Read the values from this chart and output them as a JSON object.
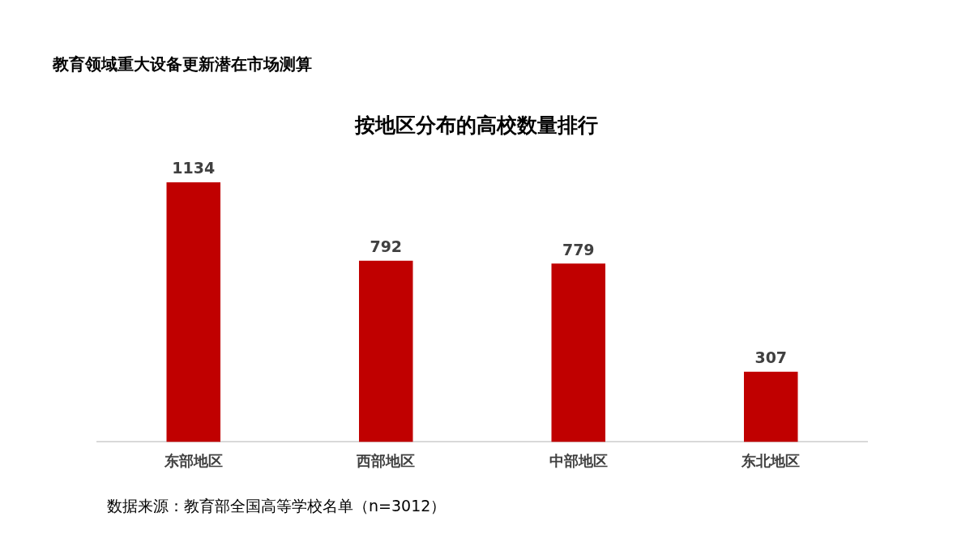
{
  "chart_data": {
    "type": "bar",
    "title": "按地区分布的高校数量排行",
    "subtitle": "教育领域重大设备更新潜在市场测算",
    "categories": [
      "东部地区",
      "西部地区",
      "中部地区",
      "东北地区"
    ],
    "values": [
      1134,
      792,
      779,
      307
    ],
    "color": "#c00000",
    "data_labels": true,
    "grid": false,
    "legend": false,
    "annotations": [
      "数据来源：教育部全国高等学校名单（n=3012）"
    ]
  }
}
